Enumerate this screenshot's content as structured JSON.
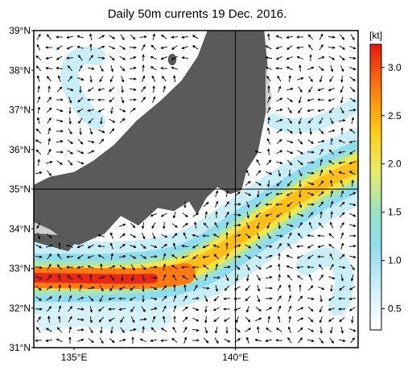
{
  "title": "Daily 50m currents 19 Dec. 2016.",
  "map": {
    "lon_range": [
      133.75,
      143.8
    ],
    "lat_range": [
      31,
      39
    ],
    "lat_ticks": [
      {
        "value": 31,
        "label": "31°N"
      },
      {
        "value": 32,
        "label": "32°N"
      },
      {
        "value": 33,
        "label": "33°N"
      },
      {
        "value": 34,
        "label": "34°N"
      },
      {
        "value": 35,
        "label": "35°N"
      },
      {
        "value": 36,
        "label": "36°N"
      },
      {
        "value": 37,
        "label": "37°N"
      },
      {
        "value": 38,
        "label": "38°N"
      },
      {
        "value": 39,
        "label": "39°N"
      }
    ],
    "lon_ticks": [
      {
        "value": 135,
        "label": "135°E"
      },
      {
        "value": 140,
        "label": "140°E"
      }
    ]
  },
  "colorbar": {
    "unit": "[kt]",
    "range": [
      0.28,
      3.24
    ],
    "ticks": [
      0.5,
      {
        "value": 1,
        "label": "1.0"
      },
      1.5,
      {
        "value": 2,
        "label": "2.0"
      },
      2.5,
      {
        "value": 3,
        "label": "3.0"
      }
    ]
  }
}
